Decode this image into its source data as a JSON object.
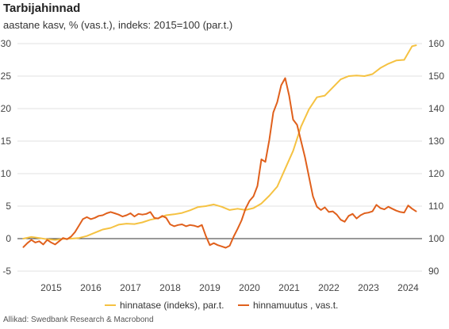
{
  "header": {
    "title": "Tarbijahinnad",
    "subtitle": "aastane kasv, % (vas.t.), indeks: 2015=100 (par.t.)"
  },
  "source": "Allikad: Swedbank Research & Macrobond",
  "colors": {
    "index": "#f5c242",
    "growth": "#e0601c",
    "grid": "#e2e2e2",
    "zero": "#333333"
  },
  "chart_data": {
    "type": "line",
    "title": "Tarbijahinnad",
    "subtitle": "aastane kasv, % (vas.t.), indeks: 2015=100 (par.t.)",
    "x_ticks": [
      "2015",
      "2016",
      "2017",
      "2018",
      "2019",
      "2020",
      "2021",
      "2022",
      "2023",
      "2024"
    ],
    "y_left": {
      "range": [
        -5,
        30
      ],
      "ticks": [
        "-5",
        "0",
        "5",
        "10",
        "15",
        "20",
        "25",
        "30"
      ]
    },
    "y_right": {
      "range": [
        90,
        160
      ],
      "ticks": [
        "90",
        "100",
        "110",
        "120",
        "130",
        "140",
        "150",
        "160"
      ]
    },
    "grid": true,
    "legend_position": "bottom",
    "series": [
      {
        "name": "hinnatase (indeks), par.t.",
        "axis": "right",
        "x": [
          2014.8,
          2015.0,
          2015.2,
          2015.4,
          2015.6,
          2015.8,
          2016.0,
          2016.2,
          2016.4,
          2016.6,
          2016.8,
          2017.0,
          2017.2,
          2017.4,
          2017.6,
          2017.8,
          2018.0,
          2018.2,
          2018.4,
          2018.6,
          2018.8,
          2019.0,
          2019.2,
          2019.4,
          2019.6,
          2019.8,
          2020.0,
          2020.2,
          2020.4,
          2020.6,
          2020.8,
          2021.0,
          2021.2,
          2021.4,
          2021.6,
          2021.8,
          2022.0,
          2022.2,
          2022.4,
          2022.6,
          2022.8,
          2023.0,
          2023.2,
          2023.4,
          2023.6,
          2023.8,
          2024.0,
          2024.2,
          2024.4,
          2024.6,
          2024.7
        ],
        "values": [
          100.0,
          100.5,
          100.2,
          99.8,
          99.6,
          99.9,
          100.0,
          100.2,
          100.8,
          101.8,
          102.8,
          103.3,
          104.3,
          104.6,
          104.5,
          105.0,
          105.8,
          106.3,
          107.2,
          107.5,
          107.9,
          108.7,
          109.7,
          110.0,
          110.5,
          109.8,
          108.8,
          109.2,
          108.8,
          109.4,
          110.8,
          113.2,
          116.0,
          121.5,
          127.0,
          134.5,
          139.8,
          143.5,
          144.0,
          146.5,
          149.0,
          150.0,
          150.2,
          150.0,
          150.6,
          152.5,
          153.8,
          154.8,
          155.0,
          159.2,
          159.5
        ]
      },
      {
        "name": "hinnamuutus , vas.t.",
        "axis": "left",
        "x": [
          2014.8,
          2014.9,
          2015.0,
          2015.1,
          2015.2,
          2015.3,
          2015.4,
          2015.5,
          2015.6,
          2015.7,
          2015.8,
          2015.9,
          2016.0,
          2016.1,
          2016.2,
          2016.3,
          2016.4,
          2016.5,
          2016.6,
          2016.7,
          2016.8,
          2016.9,
          2017.0,
          2017.1,
          2017.2,
          2017.3,
          2017.4,
          2017.5,
          2017.6,
          2017.7,
          2017.8,
          2017.9,
          2018.0,
          2018.1,
          2018.2,
          2018.3,
          2018.4,
          2018.5,
          2018.6,
          2018.7,
          2018.8,
          2018.9,
          2019.0,
          2019.1,
          2019.2,
          2019.3,
          2019.4,
          2019.5,
          2019.6,
          2019.7,
          2019.8,
          2019.9,
          2020.0,
          2020.1,
          2020.2,
          2020.3,
          2020.4,
          2020.5,
          2020.6,
          2020.7,
          2020.8,
          2020.9,
          2021.0,
          2021.1,
          2021.2,
          2021.3,
          2021.4,
          2021.5,
          2021.6,
          2021.7,
          2021.8,
          2021.9,
          2022.0,
          2022.1,
          2022.2,
          2022.3,
          2022.4,
          2022.5,
          2022.6,
          2022.7,
          2022.8,
          2022.9,
          2023.0,
          2023.1,
          2023.2,
          2023.3,
          2023.4,
          2023.5,
          2023.6,
          2023.7,
          2023.8,
          2023.9,
          2024.0,
          2024.1,
          2024.2,
          2024.3,
          2024.4,
          2024.5,
          2024.6,
          2024.7
        ],
        "values": [
          -1.3,
          -0.7,
          -0.2,
          -0.6,
          -0.4,
          -0.9,
          -0.2,
          -0.6,
          -0.9,
          -0.4,
          0.1,
          -0.1,
          0.3,
          1.0,
          2.0,
          3.0,
          3.3,
          3.0,
          3.2,
          3.5,
          3.6,
          3.9,
          4.1,
          3.9,
          3.7,
          3.4,
          3.6,
          3.9,
          3.4,
          3.8,
          3.7,
          3.8,
          4.1,
          3.2,
          3.1,
          3.5,
          3.2,
          2.2,
          1.9,
          2.1,
          2.2,
          1.9,
          2.1,
          2.0,
          1.8,
          2.1,
          0.4,
          -1.0,
          -0.7,
          -1.0,
          -1.2,
          -1.4,
          -1.1,
          0.3,
          1.5,
          2.8,
          4.6,
          5.8,
          6.5,
          8.1,
          12.2,
          11.8,
          15.2,
          19.4,
          21.0,
          23.6,
          24.7,
          22.0,
          18.3,
          17.5,
          15.0,
          12.5,
          9.5,
          6.5,
          4.9,
          4.4,
          4.8,
          4.1,
          4.2,
          3.7,
          2.9,
          2.6,
          3.5,
          3.8,
          3.1,
          3.6,
          3.9,
          4.0,
          4.2,
          5.2,
          4.7,
          4.5,
          4.9,
          4.6,
          4.3,
          4.1,
          4.0,
          5.1,
          4.6,
          4.2
        ]
      }
    ]
  }
}
